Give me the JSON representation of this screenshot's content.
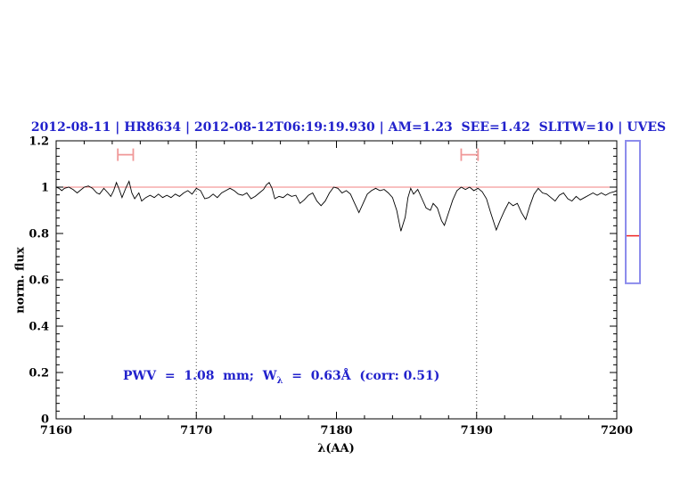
{
  "figure": {
    "background": "#ffffff"
  },
  "colors": {
    "title_blue": "#2222cc",
    "annotation_blue": "#2222cc",
    "continuum_red": "#f08080",
    "marker_salmon": "#f09898",
    "sidebar_border_blue": "#8c8cec",
    "sidebar_line_red": "#ee2222",
    "spectrum_black": "#000000",
    "dotted_line_gray": "#444444"
  },
  "chart_data": {
    "type": "line",
    "title": "2012-08-11 | HR8634 | 2012-08-12T06:19:19.930 | AM=1.23  SEE=1.42  SLITW=10 | UVES",
    "xlabel": "λ(AA)",
    "ylabel": "norm. flux",
    "xlim": [
      7160,
      7200
    ],
    "ylim": [
      0,
      1.2
    ],
    "grid": "off",
    "legend": "none",
    "xticks": {
      "values": [
        7160,
        7170,
        7180,
        7190,
        7200
      ],
      "labels": [
        "7160",
        "7170",
        "7180",
        "7190",
        "7200"
      ]
    },
    "yticks": {
      "values": [
        0,
        0.2,
        0.4,
        0.6,
        0.8,
        1,
        1.2
      ],
      "labels": [
        "0",
        "0.2",
        "0.4",
        "0.6",
        "0.8",
        "1",
        "1.2"
      ]
    },
    "x_minor_divisions": 5,
    "y_minor_divisions": 6,
    "dotted_vlines_x": [
      7170,
      7190
    ],
    "continuum_line_y": 1.0,
    "band_markers": [
      {
        "x_start": 7164.4,
        "x_end": 7165.5,
        "y": 1.14
      },
      {
        "x_start": 7188.9,
        "x_end": 7190.1,
        "y": 1.14
      }
    ],
    "annotation": {
      "pre": "PWV  =  1.08  mm;  W",
      "sub": "λ",
      "post": "  =  0.63Å  (corr: 0.51)"
    },
    "side_scale_bar": {
      "y_top_flux": 1.2,
      "y_bottom_flux": 0.585,
      "red_line_flux": 0.79
    },
    "series": [
      {
        "name": "normalized spectrum",
        "color": "#000000",
        "points": [
          [
            7160.0,
            1.0
          ],
          [
            7160.2,
            0.995
          ],
          [
            7160.4,
            0.985
          ],
          [
            7160.6,
            0.995
          ],
          [
            7160.9,
            1.0
          ],
          [
            7161.2,
            0.99
          ],
          [
            7161.5,
            0.975
          ],
          [
            7161.7,
            0.985
          ],
          [
            7162.0,
            1.0
          ],
          [
            7162.3,
            1.005
          ],
          [
            7162.6,
            0.995
          ],
          [
            7162.9,
            0.975
          ],
          [
            7163.1,
            0.97
          ],
          [
            7163.4,
            0.995
          ],
          [
            7163.7,
            0.975
          ],
          [
            7163.9,
            0.96
          ],
          [
            7164.1,
            0.985
          ],
          [
            7164.3,
            1.02
          ],
          [
            7164.5,
            0.99
          ],
          [
            7164.7,
            0.955
          ],
          [
            7165.0,
            1.0
          ],
          [
            7165.2,
            1.025
          ],
          [
            7165.4,
            0.975
          ],
          [
            7165.6,
            0.95
          ],
          [
            7165.9,
            0.975
          ],
          [
            7166.1,
            0.94
          ],
          [
            7166.4,
            0.955
          ],
          [
            7166.7,
            0.965
          ],
          [
            7167.0,
            0.955
          ],
          [
            7167.3,
            0.97
          ],
          [
            7167.6,
            0.955
          ],
          [
            7167.9,
            0.965
          ],
          [
            7168.2,
            0.955
          ],
          [
            7168.5,
            0.97
          ],
          [
            7168.8,
            0.96
          ],
          [
            7169.1,
            0.975
          ],
          [
            7169.4,
            0.985
          ],
          [
            7169.7,
            0.97
          ],
          [
            7170.0,
            0.995
          ],
          [
            7170.3,
            0.985
          ],
          [
            7170.6,
            0.95
          ],
          [
            7170.9,
            0.955
          ],
          [
            7171.2,
            0.97
          ],
          [
            7171.5,
            0.955
          ],
          [
            7171.8,
            0.975
          ],
          [
            7172.1,
            0.985
          ],
          [
            7172.4,
            0.995
          ],
          [
            7172.7,
            0.985
          ],
          [
            7173.0,
            0.97
          ],
          [
            7173.3,
            0.965
          ],
          [
            7173.6,
            0.975
          ],
          [
            7173.9,
            0.95
          ],
          [
            7174.2,
            0.96
          ],
          [
            7174.5,
            0.975
          ],
          [
            7174.8,
            0.99
          ],
          [
            7175.0,
            1.01
          ],
          [
            7175.2,
            1.02
          ],
          [
            7175.4,
            0.995
          ],
          [
            7175.6,
            0.95
          ],
          [
            7175.9,
            0.96
          ],
          [
            7176.2,
            0.955
          ],
          [
            7176.5,
            0.97
          ],
          [
            7176.8,
            0.96
          ],
          [
            7177.1,
            0.965
          ],
          [
            7177.4,
            0.93
          ],
          [
            7177.7,
            0.945
          ],
          [
            7178.0,
            0.965
          ],
          [
            7178.3,
            0.975
          ],
          [
            7178.6,
            0.94
          ],
          [
            7178.9,
            0.92
          ],
          [
            7179.2,
            0.94
          ],
          [
            7179.5,
            0.975
          ],
          [
            7179.8,
            1.0
          ],
          [
            7180.1,
            0.995
          ],
          [
            7180.4,
            0.975
          ],
          [
            7180.7,
            0.985
          ],
          [
            7181.0,
            0.97
          ],
          [
            7181.3,
            0.93
          ],
          [
            7181.6,
            0.89
          ],
          [
            7181.9,
            0.93
          ],
          [
            7182.2,
            0.97
          ],
          [
            7182.5,
            0.985
          ],
          [
            7182.8,
            0.995
          ],
          [
            7183.1,
            0.985
          ],
          [
            7183.4,
            0.99
          ],
          [
            7183.7,
            0.975
          ],
          [
            7184.0,
            0.955
          ],
          [
            7184.3,
            0.9
          ],
          [
            7184.6,
            0.81
          ],
          [
            7184.9,
            0.87
          ],
          [
            7185.1,
            0.955
          ],
          [
            7185.3,
            0.995
          ],
          [
            7185.5,
            0.97
          ],
          [
            7185.8,
            0.99
          ],
          [
            7186.1,
            0.95
          ],
          [
            7186.4,
            0.91
          ],
          [
            7186.7,
            0.9
          ],
          [
            7186.9,
            0.93
          ],
          [
            7187.2,
            0.91
          ],
          [
            7187.5,
            0.855
          ],
          [
            7187.7,
            0.835
          ],
          [
            7188.0,
            0.89
          ],
          [
            7188.3,
            0.945
          ],
          [
            7188.6,
            0.985
          ],
          [
            7188.9,
            1.0
          ],
          [
            7189.2,
            0.99
          ],
          [
            7189.5,
            1.0
          ],
          [
            7189.8,
            0.985
          ],
          [
            7190.1,
            0.995
          ],
          [
            7190.4,
            0.98
          ],
          [
            7190.7,
            0.95
          ],
          [
            7191.0,
            0.89
          ],
          [
            7191.4,
            0.815
          ],
          [
            7191.7,
            0.86
          ],
          [
            7192.0,
            0.9
          ],
          [
            7192.3,
            0.935
          ],
          [
            7192.6,
            0.92
          ],
          [
            7192.9,
            0.93
          ],
          [
            7193.2,
            0.89
          ],
          [
            7193.5,
            0.86
          ],
          [
            7193.8,
            0.92
          ],
          [
            7194.1,
            0.97
          ],
          [
            7194.4,
            0.995
          ],
          [
            7194.7,
            0.975
          ],
          [
            7195.0,
            0.97
          ],
          [
            7195.3,
            0.955
          ],
          [
            7195.6,
            0.94
          ],
          [
            7195.9,
            0.965
          ],
          [
            7196.2,
            0.975
          ],
          [
            7196.5,
            0.95
          ],
          [
            7196.8,
            0.94
          ],
          [
            7197.1,
            0.96
          ],
          [
            7197.4,
            0.945
          ],
          [
            7197.7,
            0.955
          ],
          [
            7198.0,
            0.965
          ],
          [
            7198.3,
            0.975
          ],
          [
            7198.6,
            0.965
          ],
          [
            7198.9,
            0.975
          ],
          [
            7199.2,
            0.965
          ],
          [
            7199.5,
            0.975
          ],
          [
            7199.8,
            0.98
          ],
          [
            7200.0,
            0.985
          ]
        ]
      }
    ]
  }
}
